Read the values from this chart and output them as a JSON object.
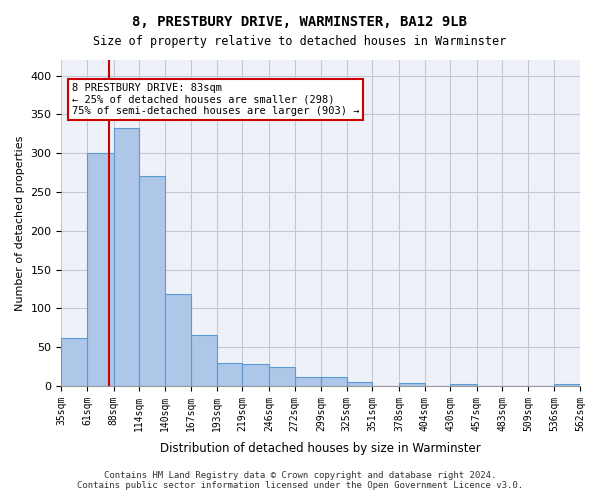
{
  "title": "8, PRESTBURY DRIVE, WARMINSTER, BA12 9LB",
  "subtitle": "Size of property relative to detached houses in Warminster",
  "xlabel": "Distribution of detached houses by size in Warminster",
  "ylabel": "Number of detached properties",
  "footer_line1": "Contains HM Land Registry data © Crown copyright and database right 2024.",
  "footer_line2": "Contains public sector information licensed under the Open Government Licence v3.0.",
  "bar_color": "#aec6e8",
  "bar_edge_color": "#5b9bd5",
  "grid_color": "#c0c8d8",
  "background_color": "#eef2f8",
  "annotation_line_color": "#cc0000",
  "annotation_box_text": "8 PRESTBURY DRIVE: 83sqm\n← 25% of detached houses are smaller (298)\n75% of semi-detached houses are larger (903) →",
  "annotation_property_sqm": 83,
  "bin_edges": [
    35,
    61,
    88,
    114,
    140,
    167,
    193,
    219,
    246,
    272,
    299,
    325,
    351,
    378,
    404,
    430,
    457,
    483,
    509,
    536,
    562
  ],
  "bin_counts": [
    62,
    300,
    333,
    270,
    119,
    65,
    29,
    28,
    25,
    11,
    11,
    5,
    0,
    4,
    0,
    3,
    0,
    0,
    0,
    3
  ],
  "ylim": [
    0,
    420
  ],
  "yticks": [
    0,
    50,
    100,
    150,
    200,
    250,
    300,
    350,
    400
  ],
  "fig_width": 6.0,
  "fig_height": 5.0
}
